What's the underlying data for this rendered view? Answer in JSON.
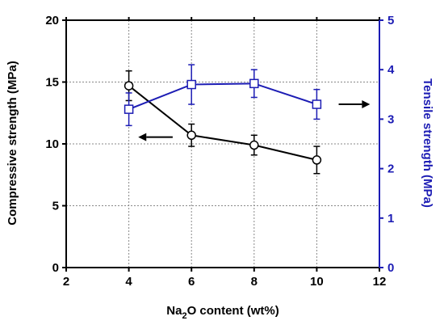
{
  "chart_data": {
    "type": "line",
    "title": "",
    "xlabel": {
      "prefix": "Na",
      "sub": "2",
      "suffix": "O content (wt%)"
    },
    "ylabel_left": "Compressive strength (MPa)",
    "ylabel_right": "Tensile strength (MPa)",
    "xlim": [
      2,
      12
    ],
    "ylim_left": [
      0,
      20
    ],
    "ylim_right": [
      0,
      5
    ],
    "x_ticks": [
      "2",
      "4",
      "6",
      "8",
      "10",
      "12"
    ],
    "y_left_ticks": [
      "0",
      "5",
      "10",
      "15",
      "20"
    ],
    "y_right_ticks": [
      "0",
      "1",
      "2",
      "3",
      "4",
      "5"
    ],
    "grid": true,
    "series": [
      {
        "axis": "left",
        "marker": "circle",
        "color": "#000000",
        "x": [
          4,
          6,
          8,
          10
        ],
        "y": [
          14.7,
          10.7,
          9.9,
          8.7
        ],
        "err": [
          1.2,
          0.9,
          0.8,
          1.1
        ]
      },
      {
        "axis": "right",
        "marker": "square",
        "color": "#1c1cb4",
        "x": [
          4,
          6,
          8,
          10
        ],
        "y": [
          3.2,
          3.7,
          3.72,
          3.3
        ],
        "err": [
          0.33,
          0.4,
          0.28,
          0.3
        ]
      }
    ],
    "annotations": [
      {
        "type": "arrow",
        "direction": "left",
        "color": "#000000",
        "x_from": 5.4,
        "x_to": 4.3,
        "y": 10.55,
        "axis": "left"
      },
      {
        "type": "arrow",
        "direction": "right",
        "color": "#000000",
        "x_from": 10.7,
        "x_to": 11.7,
        "y": 3.3,
        "axis": "right"
      }
    ],
    "colors": {
      "left_axis": "#000000",
      "right_axis": "#1c1cb4",
      "grid": "#888888"
    }
  }
}
